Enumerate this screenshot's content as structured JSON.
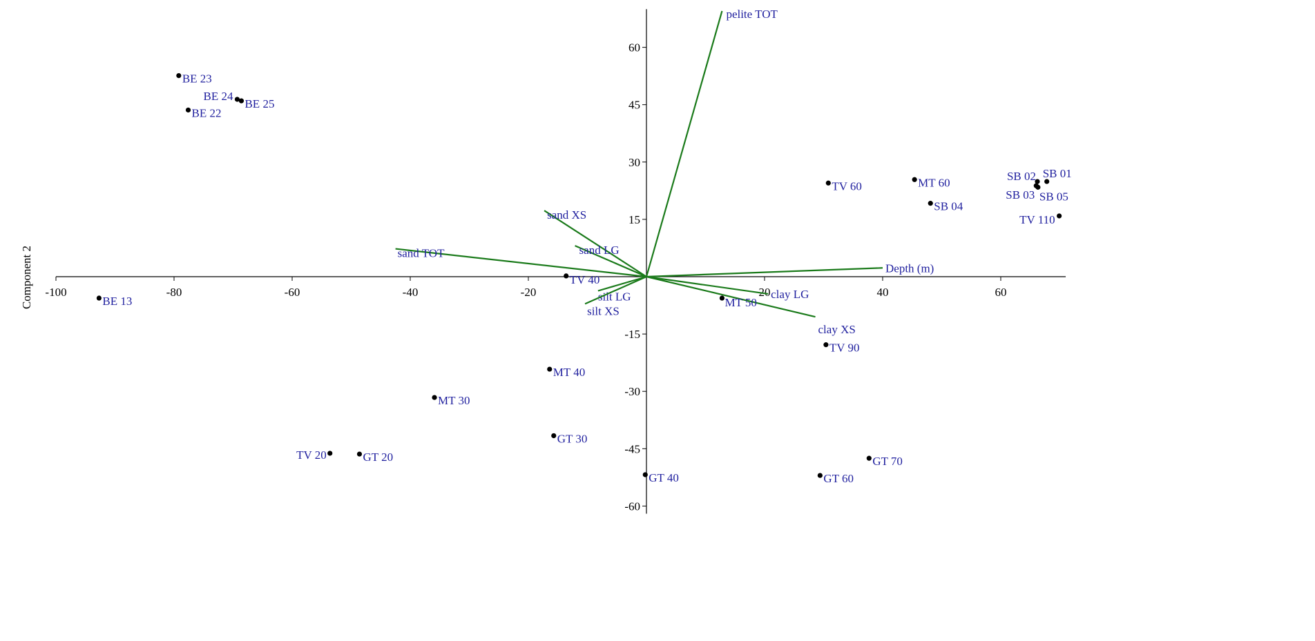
{
  "chart_data": {
    "type": "scatter",
    "subtype": "biplot",
    "title": "",
    "xlabel": "",
    "ylabel": "Component 2",
    "xlim": [
      -100,
      71
    ],
    "ylim": [
      -62,
      70
    ],
    "x_ticks": [
      -100,
      -80,
      -60,
      -40,
      -20,
      20,
      40,
      60
    ],
    "y_ticks": [
      60,
      45,
      30,
      15,
      -15,
      -30,
      -45,
      -60
    ],
    "x_tick_labels": [
      "-100",
      "-80",
      "-60",
      "-40",
      "-20",
      "20",
      "40",
      "60"
    ],
    "y_tick_labels": [
      "60",
      "45",
      "30",
      "15",
      "-15",
      "-30",
      "-45",
      "-60"
    ],
    "grid": false,
    "colors": {
      "point": "#000000",
      "label": "#1f1f9e",
      "vector": "#1a7a1a",
      "axis": "#000000"
    },
    "points": [
      {
        "label": "BE 23",
        "x": -79.2,
        "y": 52.6
      },
      {
        "label": "BE 24",
        "x": -69.3,
        "y": 46.4
      },
      {
        "label": "BE 25",
        "x": -68.6,
        "y": 46.0
      },
      {
        "label": "BE 22",
        "x": -77.6,
        "y": 43.6
      },
      {
        "label": "BE 13",
        "x": -92.7,
        "y": -5.6
      },
      {
        "label": "TV 40",
        "x": -13.6,
        "y": 0.2
      },
      {
        "label": "MT 50",
        "x": 12.8,
        "y": -5.6
      },
      {
        "label": "TV 60",
        "x": 30.8,
        "y": 24.5
      },
      {
        "label": "MT 60",
        "x": 45.4,
        "y": 25.4
      },
      {
        "label": "SB 04",
        "x": 48.1,
        "y": 19.2
      },
      {
        "label": "SB 02",
        "x": 66.2,
        "y": 24.9
      },
      {
        "label": "SB 01",
        "x": 67.8,
        "y": 24.9
      },
      {
        "label": "SB 03",
        "x": 66.0,
        "y": 23.8
      },
      {
        "label": "SB 05",
        "x": 66.3,
        "y": 23.4
      },
      {
        "label": "TV 110",
        "x": 69.9,
        "y": 15.9
      },
      {
        "label": "TV 90",
        "x": 30.4,
        "y": -17.8
      },
      {
        "label": "MT 40",
        "x": -16.4,
        "y": -24.2
      },
      {
        "label": "MT 30",
        "x": -35.9,
        "y": -31.6
      },
      {
        "label": "GT 30",
        "x": -15.7,
        "y": -41.6
      },
      {
        "label": "TV 20",
        "x": -53.6,
        "y": -46.2
      },
      {
        "label": "GT 20",
        "x": -48.6,
        "y": -46.4
      },
      {
        "label": "GT 40",
        "x": -0.2,
        "y": -51.8
      },
      {
        "label": "GT 60",
        "x": 29.4,
        "y": -52.0
      },
      {
        "label": "GT 70",
        "x": 37.7,
        "y": -47.5
      }
    ],
    "vectors": [
      {
        "label": "pelite TOT",
        "x": 12.8,
        "y": 69.5
      },
      {
        "label": "sand XS",
        "x": -17.3,
        "y": 17.3
      },
      {
        "label": "sand LG",
        "x": -12.1,
        "y": 8.1
      },
      {
        "label": "sand TOT",
        "x": -42.5,
        "y": 7.3
      },
      {
        "label": "silt LG",
        "x": -8.2,
        "y": -3.7
      },
      {
        "label": "silt XS",
        "x": -10.4,
        "y": -7.1
      },
      {
        "label": "clay LG",
        "x": 20.6,
        "y": -4.5
      },
      {
        "label": "clay XS",
        "x": 28.6,
        "y": -10.5
      },
      {
        "label": "Depth (m)",
        "x": 40.0,
        "y": 2.3
      }
    ]
  }
}
